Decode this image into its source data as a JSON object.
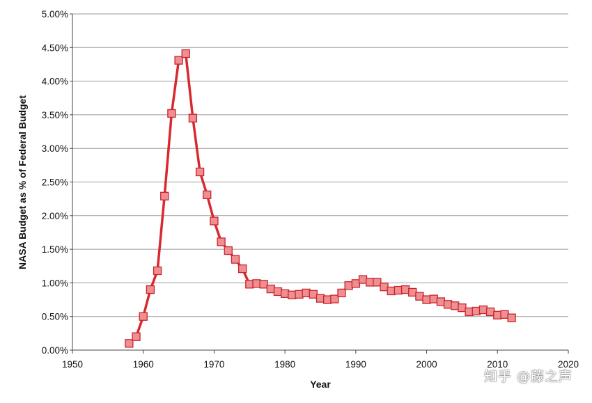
{
  "chart_data": {
    "type": "line",
    "title": "",
    "xlabel": "Year",
    "ylabel": "NASA Budget as % of Federal Budget",
    "xlim": [
      1950,
      2020
    ],
    "ylim": [
      0,
      5
    ],
    "x_ticks": [
      1950,
      1960,
      1970,
      1980,
      1990,
      2000,
      2010,
      2020
    ],
    "y_ticks": [
      0,
      0.5,
      1,
      1.5,
      2,
      2.5,
      3,
      3.5,
      4,
      4.5,
      5
    ],
    "y_tick_labels": [
      "0.00%",
      "0.50%",
      "1.00%",
      "1.50%",
      "2.00%",
      "2.50%",
      "3.00%",
      "3.50%",
      "4.00%",
      "4.50%",
      "5.00%"
    ],
    "grid": "horizontal",
    "legend": "none",
    "series": [
      {
        "color": "#d9282f",
        "marker": "square",
        "points": [
          [
            1958,
            0.1
          ],
          [
            1959,
            0.2
          ],
          [
            1960,
            0.5
          ],
          [
            1961,
            0.9
          ],
          [
            1962,
            1.18
          ],
          [
            1963,
            2.29
          ],
          [
            1964,
            3.52
          ],
          [
            1965,
            4.31
          ],
          [
            1966,
            4.41
          ],
          [
            1967,
            3.45
          ],
          [
            1968,
            2.65
          ],
          [
            1969,
            2.31
          ],
          [
            1970,
            1.92
          ],
          [
            1971,
            1.61
          ],
          [
            1972,
            1.48
          ],
          [
            1973,
            1.35
          ],
          [
            1974,
            1.21
          ],
          [
            1975,
            0.98
          ],
          [
            1976,
            0.99
          ],
          [
            1977,
            0.98
          ],
          [
            1978,
            0.91
          ],
          [
            1979,
            0.87
          ],
          [
            1980,
            0.84
          ],
          [
            1981,
            0.82
          ],
          [
            1982,
            0.83
          ],
          [
            1983,
            0.85
          ],
          [
            1984,
            0.83
          ],
          [
            1985,
            0.77
          ],
          [
            1986,
            0.75
          ],
          [
            1987,
            0.76
          ],
          [
            1988,
            0.85
          ],
          [
            1989,
            0.96
          ],
          [
            1990,
            0.99
          ],
          [
            1991,
            1.05
          ],
          [
            1992,
            1.01
          ],
          [
            1993,
            1.01
          ],
          [
            1994,
            0.94
          ],
          [
            1995,
            0.88
          ],
          [
            1996,
            0.89
          ],
          [
            1997,
            0.9
          ],
          [
            1998,
            0.86
          ],
          [
            1999,
            0.8
          ],
          [
            2000,
            0.75
          ],
          [
            2001,
            0.76
          ],
          [
            2002,
            0.72
          ],
          [
            2003,
            0.68
          ],
          [
            2004,
            0.66
          ],
          [
            2005,
            0.63
          ],
          [
            2006,
            0.57
          ],
          [
            2007,
            0.58
          ],
          [
            2008,
            0.6
          ],
          [
            2009,
            0.57
          ],
          [
            2010,
            0.52
          ],
          [
            2011,
            0.53
          ],
          [
            2012,
            0.48
          ]
        ]
      }
    ]
  },
  "watermark": "知乎 @藤之声"
}
